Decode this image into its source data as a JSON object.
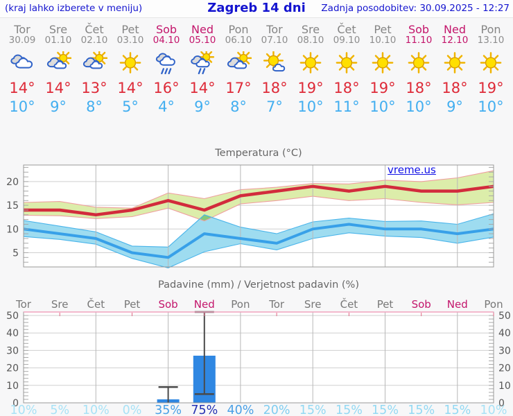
{
  "header": {
    "hint": "(kraj lahko izberete v meniju)",
    "title": "Zagreb 14 dni",
    "updated": "Zadnja posodobitev: 30.09.2025 - 12:27"
  },
  "watermark": "vreme.us",
  "colors": {
    "header_text": "#1414cf",
    "weekday_gray": "#858585",
    "weekend_red": "#c3156b",
    "high_temp_red": "#de2a38",
    "low_temp_blue": "#42aef0"
  },
  "forecast": {
    "days": [
      {
        "name": "Tor",
        "date": "30.09",
        "weekend": false,
        "icon": "cloudy",
        "high": "14°",
        "low": "10°"
      },
      {
        "name": "Sre",
        "date": "01.10",
        "weekend": false,
        "icon": "partly-sunny",
        "high": "14°",
        "low": "9°"
      },
      {
        "name": "Čet",
        "date": "02.10",
        "weekend": false,
        "icon": "partly-sunny",
        "high": "13°",
        "low": "8°"
      },
      {
        "name": "Pet",
        "date": "03.10",
        "weekend": false,
        "icon": "sunny",
        "high": "14°",
        "low": "5°"
      },
      {
        "name": "Sob",
        "date": "04.10",
        "weekend": true,
        "icon": "rain",
        "high": "16°",
        "low": "4°"
      },
      {
        "name": "Ned",
        "date": "05.10",
        "weekend": true,
        "icon": "sun-rain",
        "high": "14°",
        "low": "9°"
      },
      {
        "name": "Pon",
        "date": "06.10",
        "weekend": false,
        "icon": "partly-sunny",
        "high": "17°",
        "low": "8°"
      },
      {
        "name": "Tor",
        "date": "07.10",
        "weekend": false,
        "icon": "mostly-sunny",
        "high": "18°",
        "low": "7°"
      },
      {
        "name": "Sre",
        "date": "08.10",
        "weekend": false,
        "icon": "sunny",
        "high": "19°",
        "low": "10°"
      },
      {
        "name": "Čet",
        "date": "09.10",
        "weekend": false,
        "icon": "sunny",
        "high": "18°",
        "low": "11°"
      },
      {
        "name": "Pet",
        "date": "10.10",
        "weekend": false,
        "icon": "sunny",
        "high": "19°",
        "low": "10°"
      },
      {
        "name": "Sob",
        "date": "11.10",
        "weekend": true,
        "icon": "sunny",
        "high": "18°",
        "low": "10°"
      },
      {
        "name": "Ned",
        "date": "12.10",
        "weekend": true,
        "icon": "sunny",
        "high": "18°",
        "low": "9°"
      },
      {
        "name": "Pon",
        "date": "13.10",
        "weekend": false,
        "icon": "sunny",
        "high": "19°",
        "low": "10°"
      }
    ]
  },
  "chart_data": [
    {
      "type": "line",
      "title": "Temperatura (°C)",
      "ylim": [
        2,
        23.5
      ],
      "yticks": [
        5,
        10,
        15,
        20
      ],
      "grid": true,
      "series": [
        {
          "name": "max temperature",
          "color": "#d22b3c",
          "values": [
            14,
            14,
            13,
            14,
            16,
            14,
            17,
            18,
            19,
            18,
            19,
            18,
            18,
            19
          ]
        },
        {
          "name": "min temperature",
          "color": "#38a0e8",
          "values": [
            10,
            9,
            8,
            5,
            4,
            9,
            8,
            7,
            10,
            11,
            10,
            10,
            9,
            10
          ]
        }
      ],
      "bands": [
        {
          "name": "max range",
          "fill": "#dcedaa",
          "edge": "#ef9f9f",
          "upper": [
            15.6,
            15.8,
            14.6,
            14.4,
            17.6,
            16.4,
            18.3,
            18.8,
            19.6,
            19.5,
            20.3,
            20.0,
            20.8,
            22.3
          ],
          "lower": [
            12.9,
            12.8,
            12.2,
            12.6,
            14.4,
            11.7,
            15.3,
            16.0,
            16.9,
            16.0,
            16.4,
            15.6,
            15.1,
            15.6
          ]
        },
        {
          "name": "min range",
          "fill": "#9edcf0",
          "edge": "#49b4ea",
          "upper": [
            11.8,
            10.6,
            9.4,
            6.4,
            6.2,
            13.0,
            10.4,
            9.0,
            11.5,
            12.3,
            11.6,
            11.7,
            11.0,
            13.2
          ],
          "lower": [
            8.4,
            7.8,
            6.8,
            3.8,
            1.8,
            5.2,
            6.9,
            5.6,
            8.0,
            9.2,
            8.5,
            8.2,
            7.0,
            8.3
          ]
        }
      ],
      "overlap_fill": "#84c87c"
    },
    {
      "type": "bar",
      "title": "Padavine (mm) / Verjetnost padavin (%)",
      "ylim": [
        0,
        52
      ],
      "yticks": [
        0,
        10,
        20,
        30,
        40,
        50
      ],
      "bar_color": "#2f87e2",
      "values": [
        0,
        0,
        0,
        0,
        2,
        27,
        0,
        0,
        0,
        0,
        0,
        0,
        0,
        0
      ],
      "whiskers": [
        null,
        null,
        null,
        null,
        {
          "low": 0,
          "high": 9
        },
        {
          "low": 5,
          "high": 52
        },
        null,
        null,
        null,
        null,
        null,
        null,
        null,
        null
      ],
      "probabilities": [
        {
          "label": "10%",
          "color": "#a8e2f6"
        },
        {
          "label": "5%",
          "color": "#a8e2f6"
        },
        {
          "label": "10%",
          "color": "#a8e2f6"
        },
        {
          "label": "0%",
          "color": "#a8e2f6"
        },
        {
          "label": "35%",
          "color": "#4aa0e6"
        },
        {
          "label": "75%",
          "color": "#2531b2"
        },
        {
          "label": "40%",
          "color": "#4aa0e6"
        },
        {
          "label": "20%",
          "color": "#7fcdf0"
        },
        {
          "label": "15%",
          "color": "#93d9f3"
        },
        {
          "label": "15%",
          "color": "#93d9f3"
        },
        {
          "label": "15%",
          "color": "#93d9f3"
        },
        {
          "label": "15%",
          "color": "#93d9f3"
        },
        {
          "label": "15%",
          "color": "#93d9f3"
        },
        {
          "label": "10%",
          "color": "#a8e2f6"
        }
      ]
    }
  ]
}
